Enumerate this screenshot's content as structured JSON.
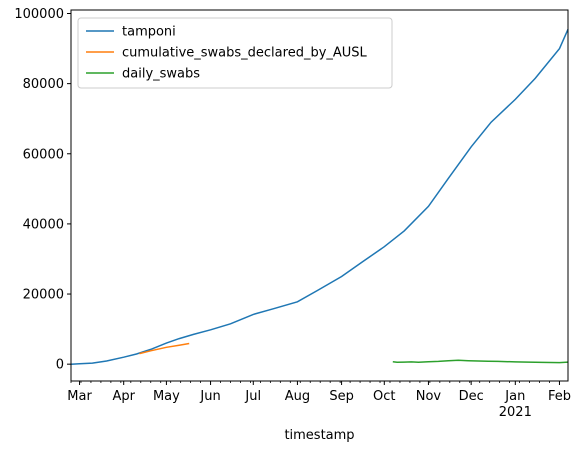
{
  "chart_data": {
    "type": "line",
    "xlabel": "timestamp",
    "ylabel": "",
    "title": "",
    "grid": false,
    "legend_position": "top-left",
    "xlim": [
      "2020-02-24",
      "2021-02-07"
    ],
    "ylim": [
      -4800,
      101000
    ],
    "y_ticks": [
      0,
      20000,
      40000,
      60000,
      80000,
      100000
    ],
    "x_ticks": [
      {
        "date": "2020-03-01",
        "label": "Mar"
      },
      {
        "date": "2020-04-01",
        "label": "Apr"
      },
      {
        "date": "2020-05-01",
        "label": "May"
      },
      {
        "date": "2020-06-01",
        "label": "Jun"
      },
      {
        "date": "2020-07-01",
        "label": "Jul"
      },
      {
        "date": "2020-08-01",
        "label": "Aug"
      },
      {
        "date": "2020-09-01",
        "label": "Sep"
      },
      {
        "date": "2020-10-01",
        "label": "Oct"
      },
      {
        "date": "2020-11-01",
        "label": "Nov"
      },
      {
        "date": "2020-12-01",
        "label": "Dec"
      },
      {
        "date": "2021-01-01",
        "label": "Jan"
      },
      {
        "date": "2021-02-01",
        "label": "Feb"
      }
    ],
    "x_tick_sublabel": {
      "date": "2021-01-01",
      "label": "2021"
    },
    "series": [
      {
        "name": "tamponi",
        "color": "#1f77b4",
        "points": [
          [
            "2020-02-24",
            0
          ],
          [
            "2020-03-01",
            100
          ],
          [
            "2020-03-10",
            300
          ],
          [
            "2020-03-20",
            900
          ],
          [
            "2020-04-01",
            2000
          ],
          [
            "2020-04-10",
            2900
          ],
          [
            "2020-04-20",
            4200
          ],
          [
            "2020-05-01",
            6000
          ],
          [
            "2020-05-10",
            7300
          ],
          [
            "2020-05-20",
            8500
          ],
          [
            "2020-06-01",
            9800
          ],
          [
            "2020-06-15",
            11500
          ],
          [
            "2020-07-01",
            14200
          ],
          [
            "2020-07-15",
            15800
          ],
          [
            "2020-08-01",
            17800
          ],
          [
            "2020-08-15",
            21000
          ],
          [
            "2020-09-01",
            25000
          ],
          [
            "2020-09-15",
            29000
          ],
          [
            "2020-10-01",
            33500
          ],
          [
            "2020-10-15",
            38000
          ],
          [
            "2020-11-01",
            45000
          ],
          [
            "2020-11-15",
            53000
          ],
          [
            "2020-12-01",
            62000
          ],
          [
            "2020-12-15",
            69000
          ],
          [
            "2021-01-01",
            75500
          ],
          [
            "2021-01-15",
            81500
          ],
          [
            "2021-02-01",
            90000
          ],
          [
            "2021-02-07",
            95500
          ]
        ]
      },
      {
        "name": "cumulative_swabs_declared_by_AUSL",
        "color": "#ff7f0e",
        "points": [
          [
            "2020-04-12",
            3000
          ],
          [
            "2020-04-20",
            3800
          ],
          [
            "2020-05-01",
            4800
          ],
          [
            "2020-05-10",
            5400
          ],
          [
            "2020-05-17",
            5900
          ]
        ]
      },
      {
        "name": "daily_swabs",
        "color": "#2ca02c",
        "points": [
          [
            "2020-10-07",
            700
          ],
          [
            "2020-10-10",
            550
          ],
          [
            "2020-10-15",
            600
          ],
          [
            "2020-10-20",
            650
          ],
          [
            "2020-10-25",
            550
          ],
          [
            "2020-11-01",
            700
          ],
          [
            "2020-11-08",
            800
          ],
          [
            "2020-11-15",
            950
          ],
          [
            "2020-11-22",
            1100
          ],
          [
            "2020-11-29",
            1000
          ],
          [
            "2020-12-06",
            900
          ],
          [
            "2020-12-13",
            850
          ],
          [
            "2020-12-20",
            800
          ],
          [
            "2021-01-01",
            650
          ],
          [
            "2021-01-10",
            600
          ],
          [
            "2021-01-20",
            500
          ],
          [
            "2021-02-01",
            450
          ],
          [
            "2021-02-07",
            600
          ]
        ]
      }
    ]
  }
}
